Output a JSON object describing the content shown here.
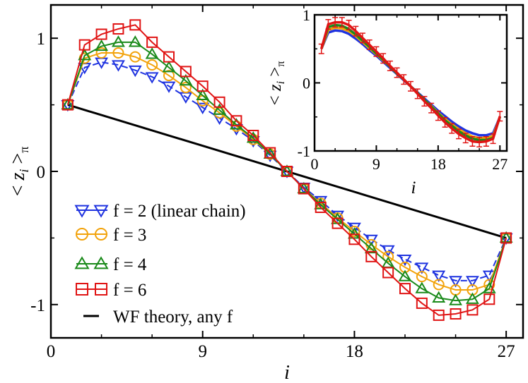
{
  "chart_data": [
    {
      "id": "main",
      "type": "line",
      "xlabel": "i",
      "ylabel": "< z_i >_π",
      "xlim": [
        0,
        28
      ],
      "ylim": [
        -1.25,
        1.25
      ],
      "xticks": [
        0,
        9,
        18,
        27
      ],
      "yticks": [
        -1,
        0,
        1
      ],
      "x": [
        1,
        2,
        3,
        4,
        5,
        6,
        7,
        8,
        9,
        10,
        11,
        12,
        13,
        14,
        15,
        16,
        17,
        18,
        19,
        20,
        21,
        22,
        23,
        24,
        25,
        26,
        27
      ],
      "series": [
        {
          "name": "f = 2 (linear chain)",
          "color": "#1f33e0",
          "marker": "triangle-down",
          "dash": "dashed",
          "values": [
            0.5,
            0.78,
            0.82,
            0.8,
            0.76,
            0.71,
            0.64,
            0.56,
            0.48,
            0.4,
            0.32,
            0.23,
            0.12,
            0.0,
            -0.12,
            -0.22,
            -0.33,
            -0.42,
            -0.51,
            -0.59,
            -0.66,
            -0.72,
            -0.78,
            -0.82,
            -0.82,
            -0.78,
            -0.5
          ]
        },
        {
          "name": "f = 3",
          "color": "#f2a20a",
          "marker": "circle",
          "dash": "solid",
          "values": [
            0.5,
            0.85,
            0.89,
            0.89,
            0.86,
            0.8,
            0.72,
            0.63,
            0.53,
            0.44,
            0.34,
            0.24,
            0.13,
            0.0,
            -0.13,
            -0.24,
            -0.35,
            -0.45,
            -0.55,
            -0.64,
            -0.72,
            -0.79,
            -0.85,
            -0.89,
            -0.89,
            -0.85,
            -0.5
          ]
        },
        {
          "name": "f = 4",
          "color": "#1a8a1a",
          "marker": "triangle-up",
          "dash": "solid",
          "values": [
            0.5,
            0.87,
            0.94,
            0.97,
            0.97,
            0.88,
            0.78,
            0.68,
            0.57,
            0.46,
            0.35,
            0.25,
            0.13,
            0.0,
            -0.13,
            -0.25,
            -0.36,
            -0.47,
            -0.58,
            -0.69,
            -0.79,
            -0.88,
            -0.95,
            -0.97,
            -0.96,
            -0.88,
            -0.5
          ]
        },
        {
          "name": "f = 6",
          "color": "#e01414",
          "marker": "square",
          "dash": "solid",
          "values": [
            0.5,
            0.95,
            1.03,
            1.07,
            1.1,
            0.97,
            0.86,
            0.75,
            0.64,
            0.52,
            0.38,
            0.27,
            0.14,
            0.0,
            -0.13,
            -0.27,
            -0.39,
            -0.51,
            -0.64,
            -0.76,
            -0.88,
            -0.99,
            -1.08,
            -1.07,
            -1.04,
            -0.96,
            -0.5
          ]
        }
      ],
      "theory": {
        "name": "WF theory, any f",
        "color": "#000000",
        "x": [
          1,
          27
        ],
        "values": [
          0.5,
          -0.5
        ]
      }
    },
    {
      "id": "inset",
      "type": "line",
      "xlabel": "i",
      "ylabel": "< z_i >_π",
      "xlim": [
        0,
        28
      ],
      "ylim": [
        -1,
        1
      ],
      "xticks": [
        0,
        9,
        18,
        27
      ],
      "yticks": [
        -1,
        0,
        1
      ],
      "x": [
        1,
        2,
        3,
        4,
        5,
        6,
        7,
        8,
        9,
        10,
        11,
        12,
        13,
        14,
        15,
        16,
        17,
        18,
        19,
        20,
        21,
        22,
        23,
        24,
        25,
        26,
        27
      ],
      "series": [
        {
          "name": "f = 2",
          "color": "#1f33e0",
          "values": [
            0.5,
            0.74,
            0.77,
            0.76,
            0.72,
            0.65,
            0.57,
            0.48,
            0.4,
            0.31,
            0.22,
            0.13,
            0.04,
            -0.05,
            -0.14,
            -0.23,
            -0.32,
            -0.41,
            -0.49,
            -0.57,
            -0.64,
            -0.7,
            -0.74,
            -0.77,
            -0.77,
            -0.74,
            -0.5
          ]
        },
        {
          "name": "f = 3",
          "color": "#f2a20a",
          "values": [
            0.5,
            0.78,
            0.81,
            0.8,
            0.76,
            0.69,
            0.6,
            0.51,
            0.42,
            0.33,
            0.24,
            0.14,
            0.05,
            -0.05,
            -0.15,
            -0.25,
            -0.34,
            -0.44,
            -0.53,
            -0.61,
            -0.68,
            -0.74,
            -0.79,
            -0.81,
            -0.81,
            -0.78,
            -0.5
          ]
        },
        {
          "name": "f = 4",
          "color": "#1a8a1a",
          "values": [
            0.5,
            0.82,
            0.85,
            0.84,
            0.79,
            0.71,
            0.62,
            0.53,
            0.43,
            0.34,
            0.24,
            0.14,
            0.05,
            -0.05,
            -0.15,
            -0.25,
            -0.35,
            -0.45,
            -0.55,
            -0.63,
            -0.71,
            -0.77,
            -0.82,
            -0.84,
            -0.84,
            -0.81,
            -0.5
          ]
        },
        {
          "name": "f = 6",
          "color": "#e01414",
          "values": [
            0.5,
            0.86,
            0.89,
            0.89,
            0.85,
            0.76,
            0.66,
            0.56,
            0.46,
            0.36,
            0.25,
            0.15,
            0.05,
            -0.05,
            -0.16,
            -0.27,
            -0.37,
            -0.48,
            -0.58,
            -0.67,
            -0.75,
            -0.81,
            -0.86,
            -0.87,
            -0.86,
            -0.82,
            -0.49
          ]
        }
      ]
    }
  ]
}
